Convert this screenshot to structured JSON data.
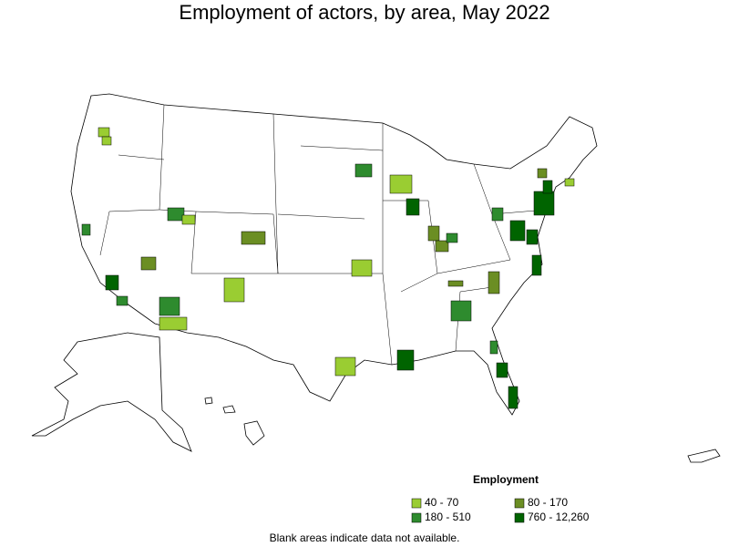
{
  "title": "Employment of actors, by area, May 2022",
  "legend": {
    "title": "Employment",
    "items": [
      {
        "label": "40 - 70",
        "color": "#9acd32"
      },
      {
        "label": "80 - 170",
        "color": "#6b8e23"
      },
      {
        "label": "180 - 510",
        "color": "#2e8b2e"
      },
      {
        "label": "760 - 12,260",
        "color": "#006400"
      }
    ]
  },
  "note": "Blank areas indicate data not available."
}
